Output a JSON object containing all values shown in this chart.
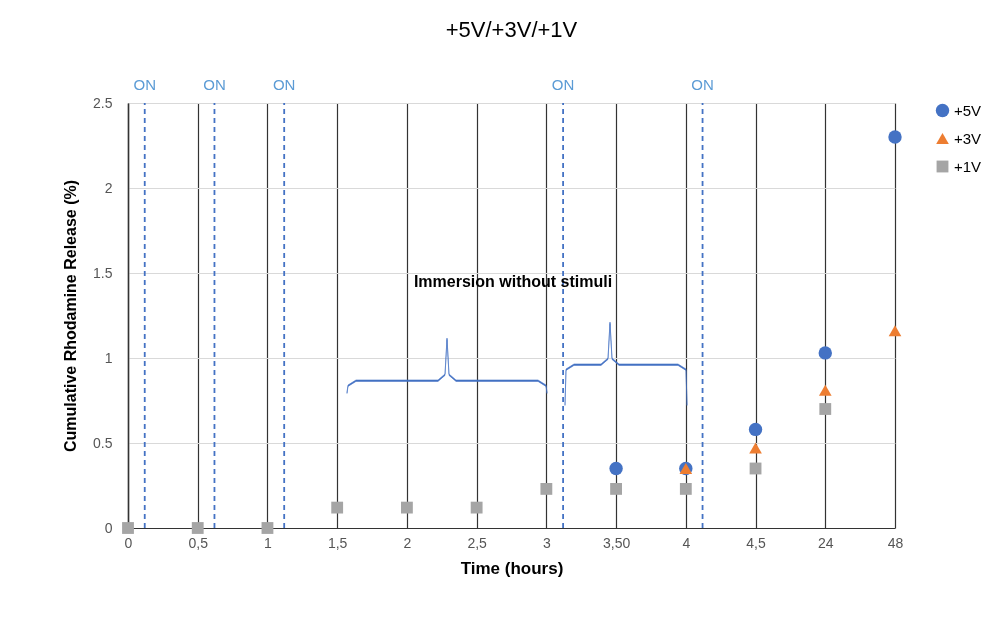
{
  "chart_data": {
    "type": "scatter",
    "title": "+5V/+3V/+1V",
    "xlabel": "Time (hours)",
    "ylabel": "Cumulative Rhodamine Release (%)",
    "categories": [
      "0",
      "0,5",
      "1",
      "1,5",
      "2",
      "2,5",
      "3",
      "3,50",
      "4",
      "4,5",
      "24",
      "48"
    ],
    "series": [
      {
        "name": "+5V",
        "color": "#4472c4",
        "marker": "circle",
        "values": [
          null,
          null,
          null,
          null,
          null,
          null,
          null,
          0.35,
          0.35,
          0.58,
          1.03,
          2.3
        ]
      },
      {
        "name": "+3V",
        "color": "#ed7d31",
        "marker": "triangle",
        "values": [
          null,
          null,
          null,
          null,
          null,
          null,
          null,
          null,
          0.35,
          0.47,
          0.81,
          1.16
        ]
      },
      {
        "name": "+1V",
        "color": "#a5a5a5",
        "marker": "square",
        "values": [
          0,
          0,
          0,
          0.12,
          0.12,
          0.12,
          0.23,
          0.23,
          0.23,
          0.35,
          0.7,
          null
        ]
      }
    ],
    "ylim": [
      0,
      2.5
    ],
    "yticks": [
      0,
      0.5,
      1,
      1.5,
      2,
      2.5
    ],
    "grid": true,
    "legend": "right",
    "ref_lines": [
      {
        "axis": "x",
        "value": "0",
        "label": "ON",
        "color": "#4472c4",
        "line_style": "dashed"
      },
      {
        "axis": "x",
        "value": "0,5",
        "label": "ON",
        "color": "#4472c4",
        "line_style": "dashed"
      },
      {
        "axis": "x",
        "value": "1",
        "label": "ON",
        "color": "#4472c4",
        "line_style": "dashed"
      },
      {
        "axis": "x",
        "value": "3",
        "label": "ON",
        "color": "#4472c4",
        "line_style": "dashed"
      },
      {
        "axis": "x",
        "value": "4",
        "label": "ON",
        "color": "#4472c4",
        "line_style": "dashed"
      }
    ],
    "annotations": [
      "Immersion without stimuli"
    ]
  }
}
